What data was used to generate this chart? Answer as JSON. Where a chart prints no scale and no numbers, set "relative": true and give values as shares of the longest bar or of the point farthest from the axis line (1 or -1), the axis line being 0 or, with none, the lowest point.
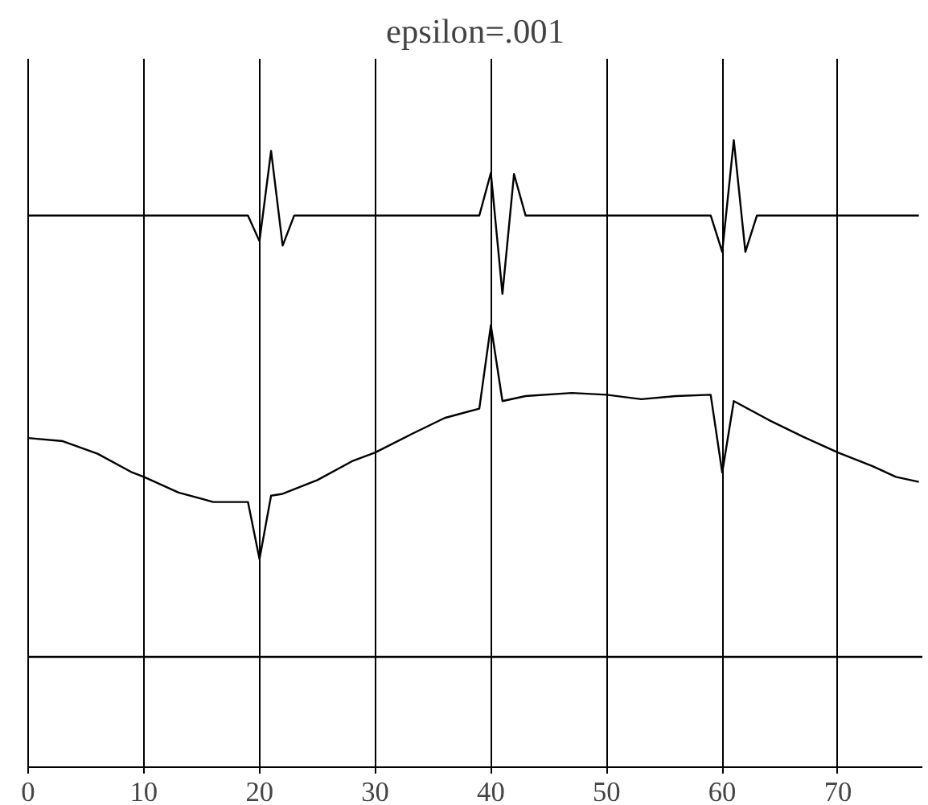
{
  "chart_data": {
    "type": "line",
    "title": "epsilon=.001",
    "relative": true,
    "xlim": [
      0,
      77.3
    ],
    "xticks": [
      0,
      10,
      20,
      30,
      40,
      50,
      60,
      70
    ],
    "grid": "x",
    "marker": "none",
    "line_style": "solid",
    "series": [
      {
        "color": "#000000",
        "x": [
          0,
          5,
          10,
          15,
          19,
          20,
          21,
          22,
          23,
          28,
          33,
          39,
          40,
          41,
          42,
          43,
          48,
          53,
          59,
          60,
          61,
          62,
          63,
          68,
          73,
          77
        ],
        "values": [
          0.88,
          0.88,
          0.88,
          0.88,
          0.88,
          0.839,
          0.983,
          0.832,
          0.88,
          0.88,
          0.88,
          0.88,
          0.948,
          0.755,
          0.946,
          0.88,
          0.88,
          0.88,
          0.88,
          0.822,
          1.0,
          0.822,
          0.88,
          0.88,
          0.88,
          0.88
        ]
      },
      {
        "color": "#000000",
        "x": [
          0,
          3,
          6,
          9,
          10,
          13,
          16,
          19,
          20,
          21,
          22,
          25,
          28,
          30,
          33,
          36,
          39,
          40,
          41,
          43,
          47,
          50,
          53,
          56,
          59,
          60,
          61,
          64,
          67,
          70,
          73,
          75,
          77
        ],
        "values": [
          0.525,
          0.52,
          0.5,
          0.47,
          0.463,
          0.438,
          0.423,
          0.423,
          0.332,
          0.433,
          0.436,
          0.458,
          0.488,
          0.502,
          0.53,
          0.557,
          0.572,
          0.705,
          0.584,
          0.592,
          0.597,
          0.594,
          0.587,
          0.592,
          0.594,
          0.47,
          0.584,
          0.554,
          0.527,
          0.502,
          0.48,
          0.463,
          0.455
        ]
      },
      {
        "color": "#000000",
        "x": [
          0,
          77.3
        ],
        "values": [
          0.176,
          0.176
        ]
      }
    ]
  }
}
